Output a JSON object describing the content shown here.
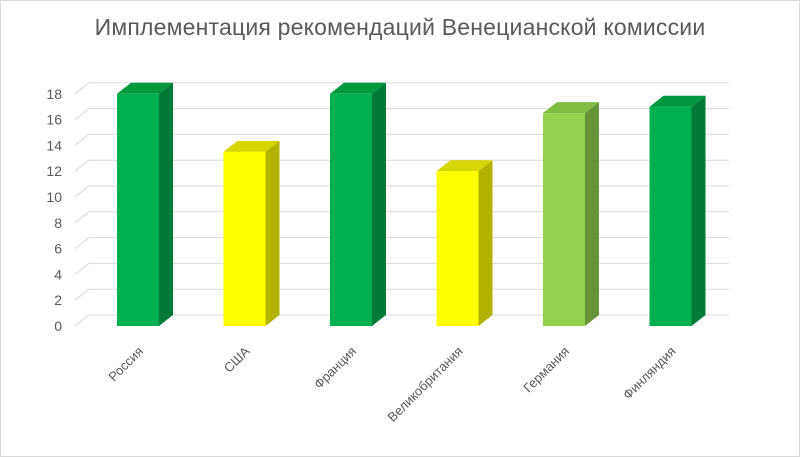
{
  "chart_data": {
    "type": "bar",
    "title": "Имплементация рекомендаций Венецианской комиссии",
    "categories": [
      "Россия",
      "США",
      "Франция",
      "Великобритания",
      "Германия",
      "Финляндия"
    ],
    "values": [
      18,
      13.5,
      18,
      12,
      16.5,
      17
    ],
    "ylim": [
      0,
      18
    ],
    "yticks": [
      0,
      2,
      4,
      6,
      8,
      10,
      12,
      14,
      16,
      18
    ],
    "grid": true,
    "legend": "none",
    "colors": {
      "front": [
        "#00b050",
        "#ffff00",
        "#00b050",
        "#ffff00",
        "#92d050",
        "#00b050"
      ],
      "side": [
        "#007a38",
        "#b2b200",
        "#007a38",
        "#b2b200",
        "#669238",
        "#007a38"
      ],
      "top": [
        "#00973f",
        "#d6d600",
        "#00973f",
        "#d6d600",
        "#7fbd45",
        "#00973f"
      ],
      "grid": "#d9d9d9",
      "text": "#595959"
    }
  }
}
